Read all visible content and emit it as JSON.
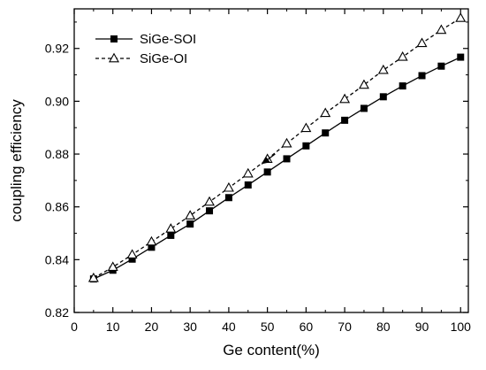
{
  "chart_data": {
    "type": "line",
    "title": "",
    "xlabel": "Ge content(%)",
    "ylabel": "coupling efficiency",
    "xlim": [
      0,
      102
    ],
    "ylim": [
      0.82,
      0.935
    ],
    "xticks": [
      0,
      10,
      20,
      30,
      40,
      50,
      60,
      70,
      80,
      90,
      100
    ],
    "yticks": [
      0.82,
      0.84,
      0.86,
      0.88,
      0.9,
      0.92
    ],
    "grid": false,
    "legend_position": "top-left",
    "x": [
      5,
      10,
      15,
      20,
      25,
      30,
      35,
      40,
      45,
      50,
      55,
      60,
      65,
      70,
      75,
      80,
      85,
      90,
      95,
      100
    ],
    "series": [
      {
        "name": "SiGe-SOI",
        "marker": "filled-square",
        "line": "solid",
        "color": "#000000",
        "values": [
          0.8327,
          0.836,
          0.8402,
          0.8447,
          0.8492,
          0.8535,
          0.8585,
          0.8635,
          0.8683,
          0.8732,
          0.8782,
          0.8831,
          0.888,
          0.8928,
          0.8973,
          0.9017,
          0.9058,
          0.9097,
          0.9133,
          0.9167
        ]
      },
      {
        "name": "SiGe-OI",
        "marker": "open-triangle",
        "line": "dashed",
        "color": "#000000",
        "values": [
          0.833,
          0.8372,
          0.8419,
          0.8468,
          0.8517,
          0.8567,
          0.8619,
          0.8672,
          0.8726,
          0.8781,
          0.884,
          0.8898,
          0.8955,
          0.9008,
          0.9062,
          0.9118,
          0.9168,
          0.922,
          0.927,
          0.9315
        ]
      }
    ],
    "annotations": [
      {
        "type": "arrow",
        "from": [
          52,
          0.88
        ],
        "to": [
          48.5,
          0.8762
        ]
      }
    ]
  }
}
